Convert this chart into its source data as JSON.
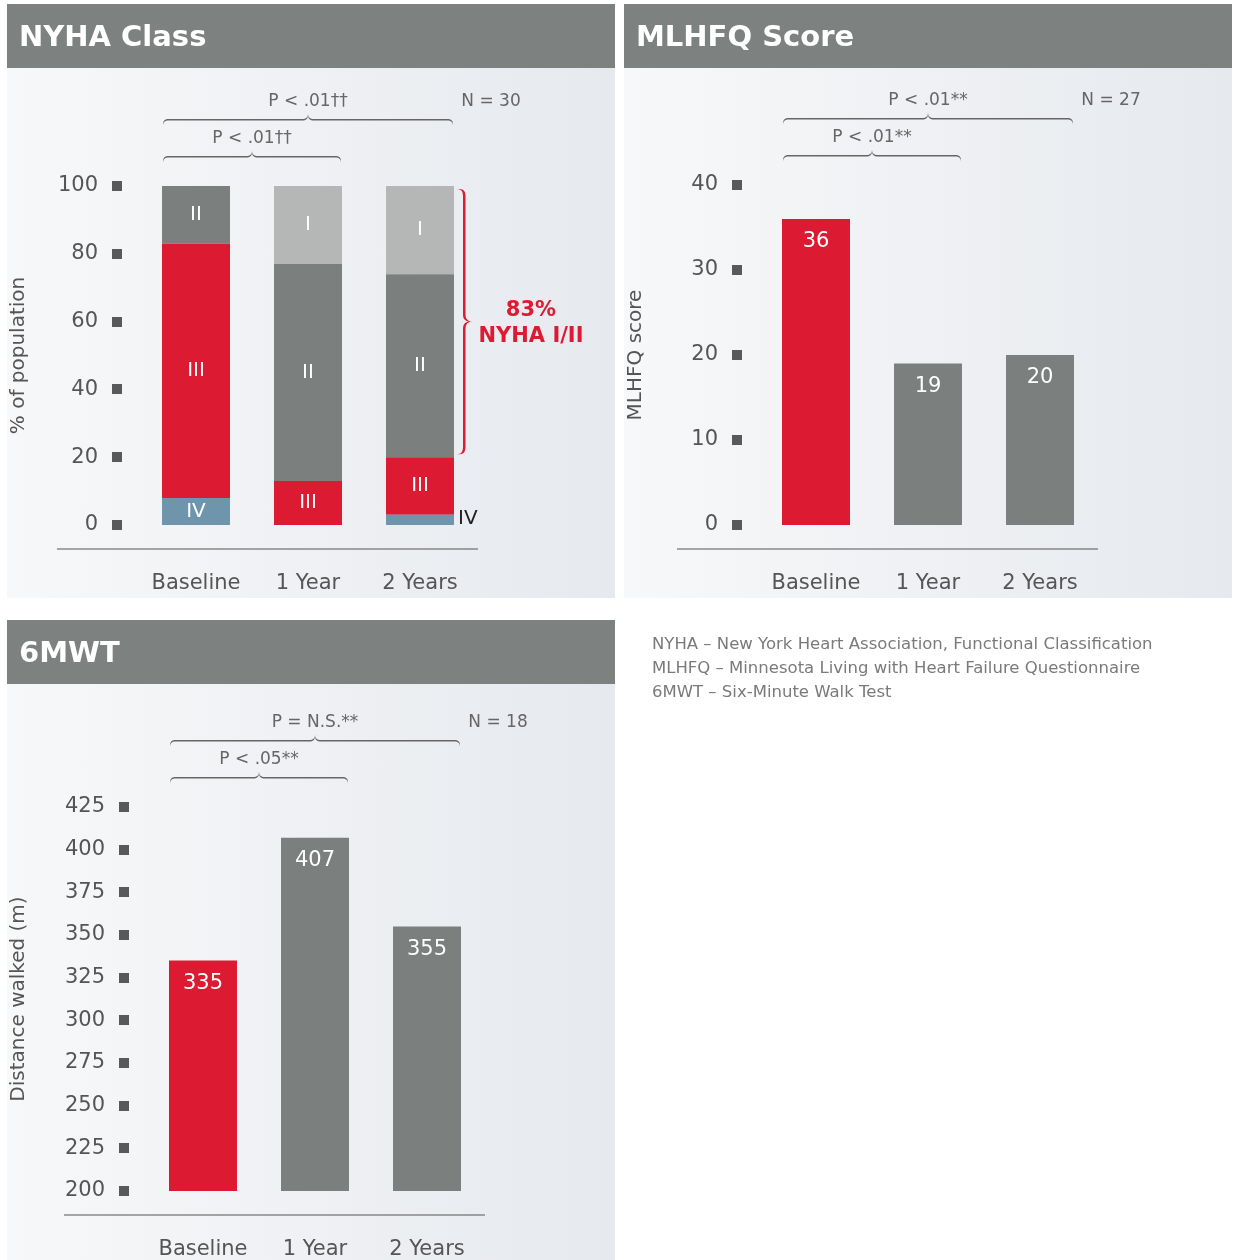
{
  "chart_data": [
    {
      "type": "bar",
      "title": "NYHA Class",
      "categories": [
        "Baseline",
        "1 Year",
        "2 Years"
      ],
      "stacked": true,
      "ylabel": "% of population",
      "ylim": [
        0,
        100
      ],
      "yticks": [
        0,
        20,
        40,
        60,
        80,
        100
      ],
      "series": [
        {
          "name": "IV",
          "color": "#6f95ad",
          "values": [
            8,
            null,
            3
          ]
        },
        {
          "name": "III",
          "color": "#dc1a32",
          "values": [
            75,
            13,
            17
          ]
        },
        {
          "name": "II",
          "color": "#7b7f7e",
          "values": [
            17,
            64,
            54
          ]
        },
        {
          "name": "I",
          "color": "#b4b7b5",
          "values": [
            null,
            23,
            26
          ]
        }
      ],
      "annotations": [
        "P < .01††",
        "P < .01††",
        "N = 30",
        "83% NYHA I/II"
      ]
    },
    {
      "type": "bar",
      "title": "MLHFQ Score",
      "categories": [
        "Baseline",
        "1 Year",
        "2 Years"
      ],
      "values": [
        36,
        19,
        20
      ],
      "colors": [
        "#dc1a32",
        "#7b7f7e",
        "#7b7f7e"
      ],
      "data_labels": true,
      "ylabel": "MLHFQ score",
      "ylim": [
        0,
        40
      ],
      "yticks": [
        0,
        10,
        20,
        30,
        40
      ],
      "annotations": [
        "P < .01**",
        "P < .01**",
        "N = 27"
      ]
    },
    {
      "type": "bar",
      "title": "6MWT",
      "categories": [
        "Baseline",
        "1 Year",
        "2 Years"
      ],
      "values": [
        335,
        407,
        355
      ],
      "colors": [
        "#dc1a32",
        "#7b7f7e",
        "#7b7f7e"
      ],
      "data_labels": true,
      "ylabel": "Distance walked (m)",
      "ylim": [
        200,
        425
      ],
      "yticks": [
        200,
        225,
        250,
        275,
        300,
        325,
        350,
        375,
        400,
        425
      ],
      "annotations": [
        "P = N.S.**",
        "P < .05**",
        "N = 18"
      ]
    },
    {
      "type": "other",
      "annotations": [
        "NYHA – New York Heart Association, Functional Classification",
        "MLHFQ – Minnesota Living with Heart Failure Questionnaire",
        "6MWT – Six-Minute Walk Test"
      ]
    }
  ]
}
